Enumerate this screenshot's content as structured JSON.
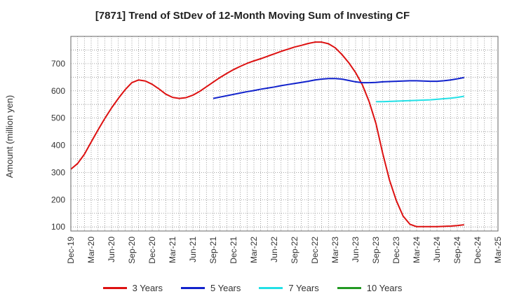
{
  "chart_data": {
    "type": "line",
    "title": "[7871]  Trend of StDev of 12-Month Moving Sum of Investing CF",
    "xlabel": "",
    "ylabel": "Amount (million yen)",
    "ylim": [
      85,
      800
    ],
    "yticks": [
      100,
      200,
      300,
      400,
      500,
      600,
      700
    ],
    "x_tick_labels": [
      "Dec-19",
      "Mar-20",
      "Jun-20",
      "Sep-20",
      "Dec-20",
      "Mar-21",
      "Jun-21",
      "Sep-21",
      "Dec-21",
      "Mar-22",
      "Jun-22",
      "Sep-22",
      "Dec-22",
      "Mar-23",
      "Jun-23",
      "Sep-23",
      "Dec-23",
      "Mar-24",
      "Jun-24",
      "Sep-24",
      "Dec-24",
      "Mar-25"
    ],
    "grid": true,
    "legend_position": "bottom",
    "series": [
      {
        "name": "3 Years",
        "color": "#dd1111",
        "start_index": 0,
        "values": [
          312,
          333,
          367,
          412,
          456,
          498,
          537,
          572,
          604,
          630,
          640,
          636,
          624,
          607,
          588,
          576,
          572,
          575,
          584,
          598,
          615,
          632,
          649,
          664,
          678,
          690,
          701,
          710,
          718,
          727,
          736,
          745,
          753,
          761,
          767,
          774,
          779,
          779,
          773,
          758,
          733,
          703,
          667,
          622,
          560,
          480,
          370,
          272,
          197,
          140,
          110,
          101,
          101,
          101,
          101,
          102,
          103,
          105,
          108
        ]
      },
      {
        "name": "5 Years",
        "color": "#1122cc",
        "start_index": 21,
        "values": [
          572,
          577,
          582,
          587,
          592,
          597,
          601,
          606,
          610,
          614,
          619,
          623,
          627,
          631,
          635,
          640,
          643,
          645,
          645,
          643,
          638,
          633,
          630,
          630,
          631,
          633,
          634,
          635,
          636,
          637,
          637,
          636,
          635,
          635,
          637,
          640,
          644,
          649
        ]
      },
      {
        "name": "7 Years",
        "color": "#22e0e6",
        "start_index": 45,
        "values": [
          560,
          560,
          561,
          562,
          563,
          564,
          565,
          566,
          567,
          569,
          571,
          573,
          576,
          580
        ]
      },
      {
        "name": "10 Years",
        "color": "#229922",
        "start_index": 0,
        "values": []
      }
    ]
  }
}
